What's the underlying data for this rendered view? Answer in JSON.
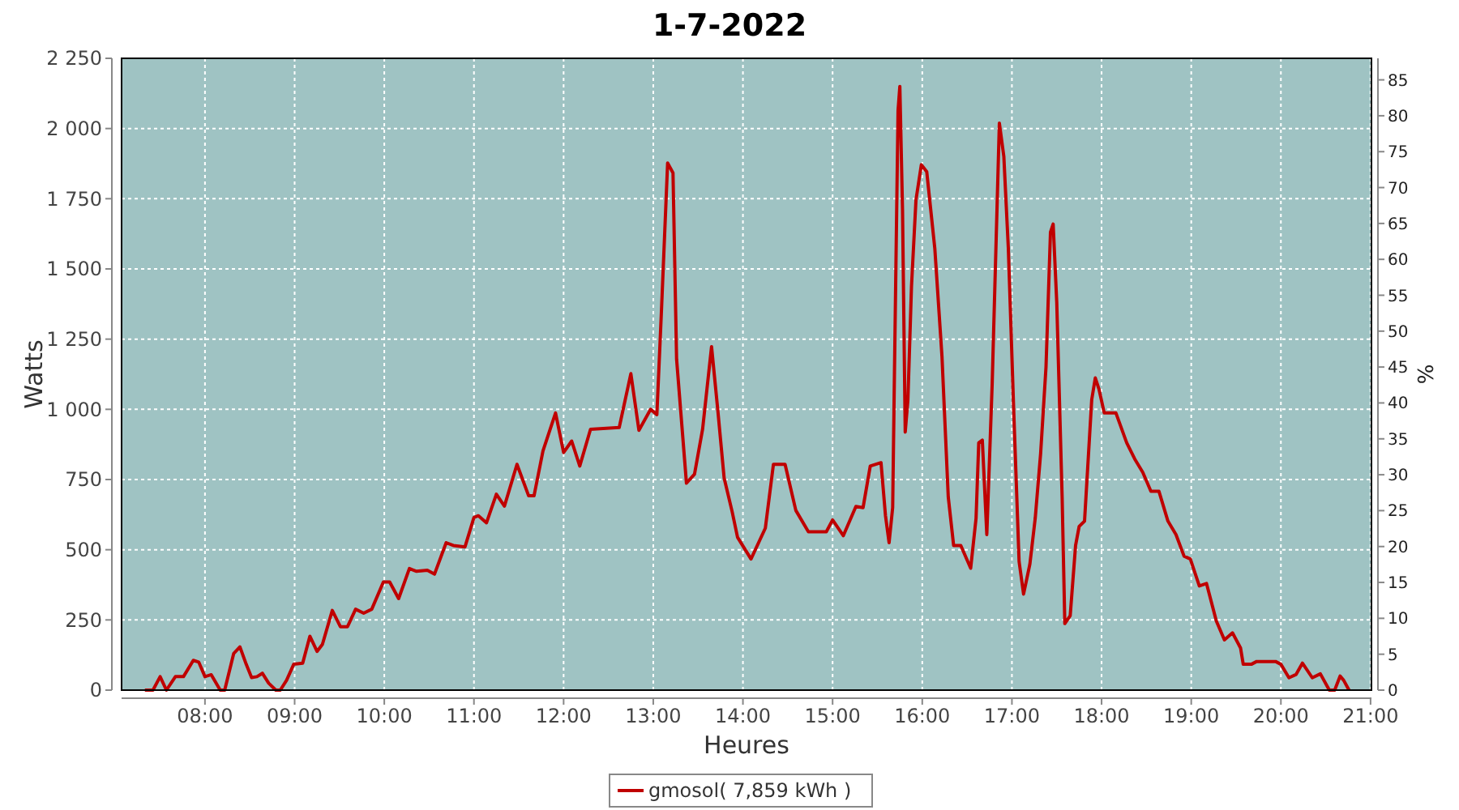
{
  "chart_data": {
    "type": "line",
    "title": "1-7-2022",
    "xlabel": "Heures",
    "ylabel": "Watts",
    "y2label": "%",
    "xlim": [
      7.07,
      21.01
    ],
    "ylim": [
      0,
      2250
    ],
    "y2lim": [
      0,
      88
    ],
    "xticks": [
      {
        "value": 8,
        "label": "08:00"
      },
      {
        "value": 9,
        "label": "09:00"
      },
      {
        "value": 10,
        "label": "10:00"
      },
      {
        "value": 11,
        "label": "11:00"
      },
      {
        "value": 12,
        "label": "12:00"
      },
      {
        "value": 13,
        "label": "13:00"
      },
      {
        "value": 14,
        "label": "14:00"
      },
      {
        "value": 15,
        "label": "15:00"
      },
      {
        "value": 16,
        "label": "16:00"
      },
      {
        "value": 17,
        "label": "17:00"
      },
      {
        "value": 18,
        "label": "18:00"
      },
      {
        "value": 19,
        "label": "19:00"
      },
      {
        "value": 20,
        "label": "20:00"
      },
      {
        "value": 21,
        "label": "21:00"
      }
    ],
    "yticks": [
      0,
      250,
      500,
      750,
      {
        "value": 1000,
        "label": "1 000"
      },
      {
        "value": 1250,
        "label": "1 250"
      },
      {
        "value": 1500,
        "label": "1 500"
      },
      {
        "value": 1750,
        "label": "1 750"
      },
      {
        "value": 2000,
        "label": "2 000"
      },
      {
        "value": 2250,
        "label": "2 250"
      }
    ],
    "y2ticks": [
      0,
      5,
      10,
      15,
      20,
      25,
      30,
      35,
      40,
      45,
      50,
      55,
      60,
      65,
      70,
      75,
      80,
      85
    ],
    "grid": true,
    "legend": "bottom",
    "series": [
      {
        "name": "gmosol( 7,859 kWh )",
        "color": "#c00000",
        "x": [
          7.33,
          7.42,
          7.5,
          7.57,
          7.67,
          7.76,
          7.87,
          7.93,
          8.0,
          8.07,
          8.17,
          8.22,
          8.32,
          8.39,
          8.46,
          8.52,
          8.58,
          8.64,
          8.71,
          8.79,
          8.84,
          8.91,
          8.99,
          9.09,
          9.17,
          9.25,
          9.31,
          9.42,
          9.51,
          9.59,
          9.68,
          9.77,
          9.86,
          9.99,
          10.06,
          10.16,
          10.28,
          10.36,
          10.48,
          10.56,
          10.69,
          10.77,
          10.9,
          11.0,
          11.05,
          11.14,
          11.25,
          11.34,
          11.48,
          11.61,
          11.67,
          11.77,
          11.91,
          12.0,
          12.09,
          12.18,
          12.3,
          12.62,
          12.75,
          12.84,
          12.97,
          13.04,
          13.09,
          13.16,
          13.22,
          13.26,
          13.37,
          13.46,
          13.55,
          13.65,
          13.72,
          13.79,
          13.88,
          13.94,
          14.09,
          14.25,
          14.34,
          14.47,
          14.59,
          14.73,
          14.93,
          15.0,
          15.12,
          15.26,
          15.34,
          15.42,
          15.54,
          15.59,
          15.63,
          15.67,
          15.69,
          15.73,
          15.75,
          15.78,
          15.81,
          15.84,
          15.88,
          15.93,
          15.99,
          16.05,
          16.14,
          16.22,
          16.29,
          16.35,
          16.43,
          16.54,
          16.6,
          16.63,
          16.67,
          16.72,
          16.78,
          16.86,
          16.91,
          16.96,
          17.02,
          17.08,
          17.13,
          17.2,
          17.26,
          17.32,
          17.38,
          17.43,
          17.46,
          17.5,
          17.56,
          17.59,
          17.65,
          17.71,
          17.75,
          17.81,
          17.89,
          17.93,
          17.97,
          18.03,
          18.16,
          18.28,
          18.37,
          18.46,
          18.55,
          18.64,
          18.74,
          18.83,
          18.92,
          18.99,
          19.09,
          19.17,
          19.28,
          19.37,
          19.46,
          19.55,
          19.58,
          19.67,
          19.73,
          19.94,
          20.0,
          20.09,
          20.17,
          20.24,
          20.35,
          20.44,
          20.54,
          20.6,
          20.66,
          20.7,
          20.76
        ],
        "values": [
          0,
          0,
          48,
          0,
          48,
          48,
          106,
          100,
          48,
          55,
          0,
          0,
          130,
          154,
          92,
          45,
          48,
          60,
          25,
          0,
          0,
          35,
          92,
          96,
          192,
          138,
          163,
          284,
          226,
          226,
          288,
          274,
          288,
          385,
          385,
          326,
          433,
          423,
          427,
          413,
          525,
          515,
          510,
          615,
          621,
          596,
          698,
          655,
          804,
          692,
          692,
          852,
          987,
          846,
          887,
          798,
          929,
          935,
          1127,
          925,
          1000,
          981,
          1342,
          1877,
          1842,
          1179,
          737,
          769,
          929,
          1223,
          996,
          756,
          635,
          544,
          467,
          577,
          804,
          804,
          640,
          564,
          564,
          606,
          550,
          654,
          650,
          798,
          810,
          621,
          525,
          650,
          1131,
          2064,
          2150,
          1708,
          919,
          1034,
          1438,
          1746,
          1871,
          1846,
          1573,
          1188,
          688,
          515,
          515,
          434,
          612,
          881,
          890,
          554,
          1092,
          2019,
          1900,
          1573,
          996,
          458,
          342,
          448,
          612,
          842,
          1150,
          1631,
          1660,
          1381,
          688,
          237,
          265,
          515,
          583,
          602,
          1034,
          1112,
          1073,
          987,
          987,
          881,
          823,
          775,
          708,
          708,
          602,
          554,
          477,
          467,
          371,
          380,
          246,
          179,
          204,
          150,
          92,
          92,
          102,
          102,
          92,
          44,
          56,
          96,
          44,
          58,
          0,
          0,
          50,
          35,
          0
        ]
      }
    ]
  }
}
